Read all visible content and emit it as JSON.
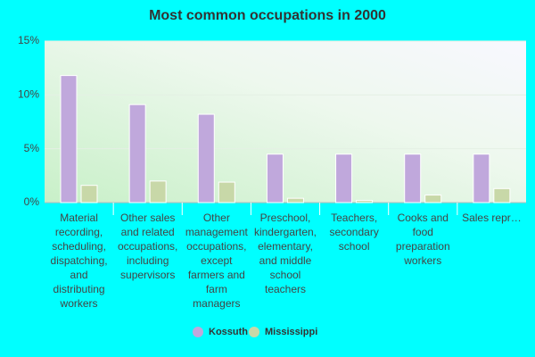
{
  "chart_data": {
    "type": "bar",
    "title": "Most common occupations in 2000",
    "categories": [
      "Material recording, scheduling, dispatching, and distributing workers",
      "Other sales and related occupations, including supervisors",
      "Other management occupations, except farmers and farm managers",
      "Preschool, kindergarten, elementary, and middle school teachers",
      "Teachers, secondary school",
      "Cooks and food preparation workers",
      "Sales repr…"
    ],
    "series": [
      {
        "name": "Kossuth",
        "color": "#c0a8dc",
        "values": [
          11.8,
          9.1,
          8.2,
          4.5,
          4.5,
          4.5,
          4.5
        ]
      },
      {
        "name": "Mississippi",
        "color": "#c8d8a8",
        "values": [
          1.6,
          2.0,
          1.9,
          0.4,
          0.2,
          0.7,
          1.3
        ]
      }
    ],
    "ylim": [
      0,
      15
    ],
    "yticks": [
      {
        "value": 0,
        "label": "0%"
      },
      {
        "value": 5,
        "label": "5%"
      },
      {
        "value": 10,
        "label": "10%"
      },
      {
        "value": 15,
        "label": "15%"
      }
    ],
    "grid": true,
    "legend": "bottom"
  }
}
